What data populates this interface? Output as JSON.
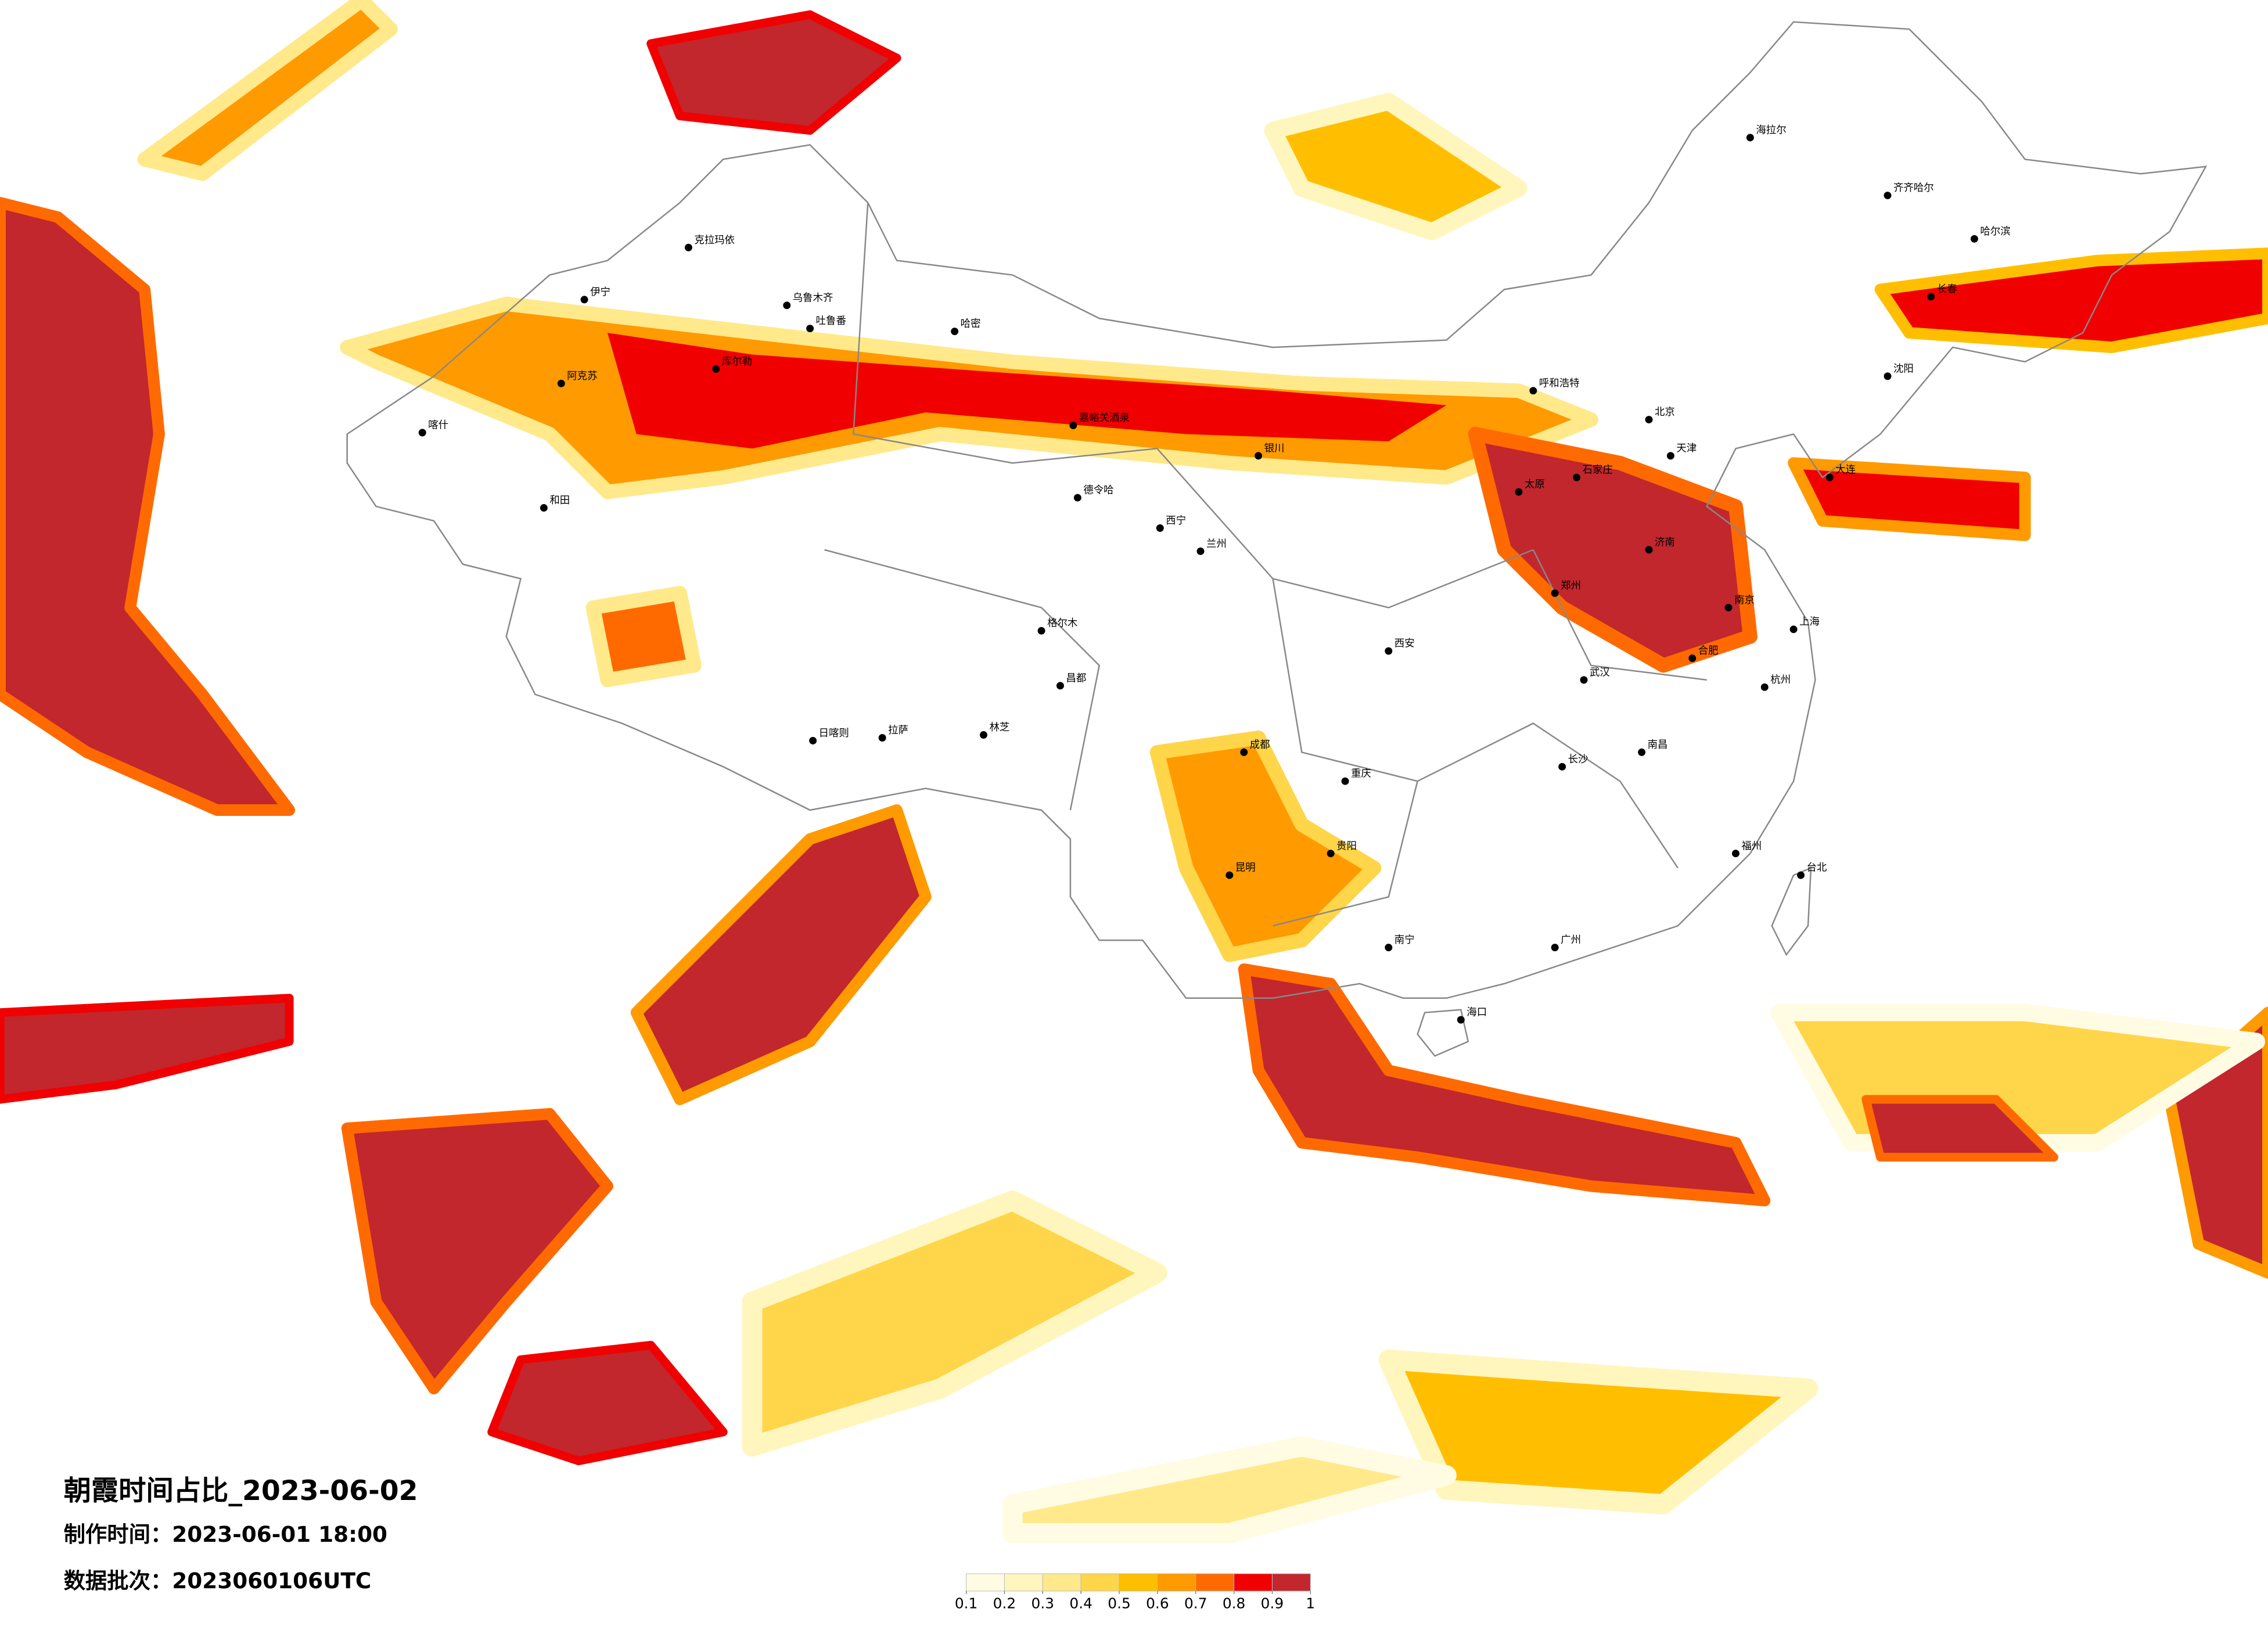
{
  "title": "朝霞时间占比_2023-06-02",
  "production_time": "制作时间：2023-06-01 18:00",
  "data_batch": "数据批次：2023060106UTC",
  "legend": {
    "ticks": [
      0.1,
      0.2,
      0.3,
      0.4,
      0.5,
      0.6,
      0.7,
      0.8,
      0.9,
      1
    ],
    "colors": [
      "#fffce3",
      "#fff6bd",
      "#ffe98a",
      "#ffd54a",
      "#ffbf00",
      "#ff9a00",
      "#ff6a00",
      "#f00000",
      "#c1272d"
    ]
  },
  "cities": [
    "克拉玛依",
    "伊宁",
    "乌鲁木齐",
    "吐鲁番",
    "阿克苏",
    "喀什",
    "和田",
    "库尔勒",
    "哈密",
    "嘉峪关酒泉",
    "德令哈",
    "格尔木",
    "拉萨",
    "日喀则",
    "林芝",
    "昌都",
    "西宁",
    "兰州",
    "银川",
    "呼和浩特",
    "北京",
    "天津",
    "济南",
    "上海",
    "南京",
    "武汉",
    "成都",
    "重庆",
    "贵阳",
    "昆明",
    "南宁",
    "广州",
    "海口",
    "台北",
    "哈尔滨",
    "长春",
    "沈阳",
    "大连",
    "西安",
    "太原",
    "郑州",
    "长沙",
    "南昌",
    "福州",
    "杭州",
    "合肥",
    "石家庄",
    "海拉尔",
    "齐齐哈尔"
  ]
}
